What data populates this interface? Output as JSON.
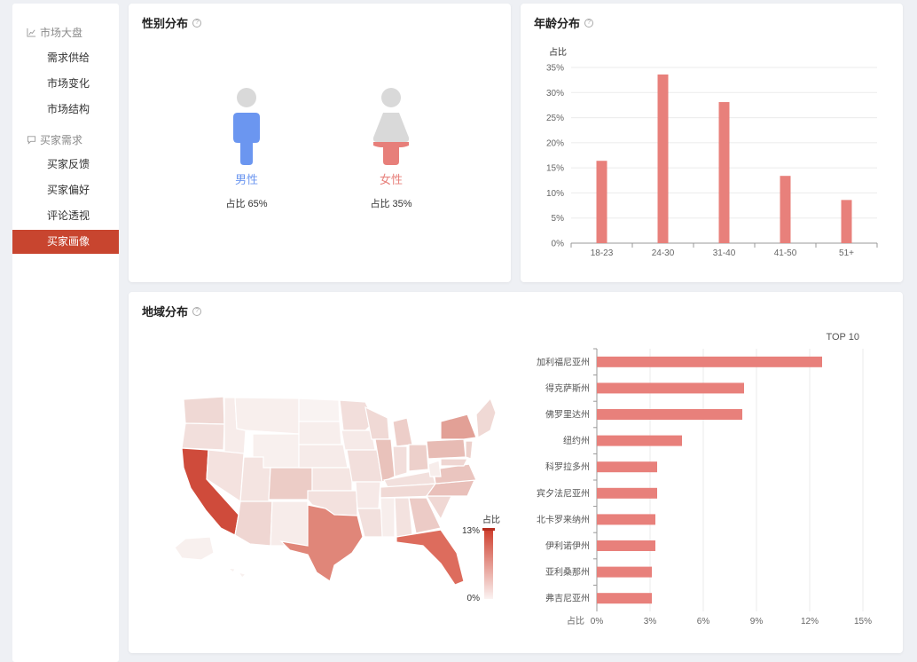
{
  "sidebar": {
    "groups": [
      {
        "label": "市场大盘",
        "icon": "chart-icon",
        "items": [
          {
            "label": "需求供给",
            "active": false
          },
          {
            "label": "市场变化",
            "active": false
          },
          {
            "label": "市场结构",
            "active": false
          }
        ]
      },
      {
        "label": "买家需求",
        "icon": "chat-icon",
        "items": [
          {
            "label": "买家反馈",
            "active": false
          },
          {
            "label": "买家偏好",
            "active": false
          },
          {
            "label": "评论透视",
            "active": false
          },
          {
            "label": "买家画像",
            "active": true
          }
        ]
      }
    ]
  },
  "gender": {
    "title": "性别分布",
    "male": {
      "label": "男性",
      "ratio_text": "占比 65%",
      "color": "#6b96f0"
    },
    "female": {
      "label": "女性",
      "ratio_text": "占比 35%",
      "color": "#e77f7a"
    }
  },
  "age": {
    "title": "年龄分布"
  },
  "region": {
    "title": "地域分布",
    "legend": {
      "title": "占比",
      "max": "13%",
      "min": "0%"
    },
    "top_title": "TOP 10"
  },
  "chart_data": [
    {
      "type": "bar",
      "categories": [
        "18-23",
        "24-30",
        "31-40",
        "41-50",
        "51+"
      ],
      "values": [
        16.4,
        33.6,
        28.1,
        13.4,
        8.6
      ],
      "ylabel": "占比",
      "ylim": [
        0,
        35
      ],
      "yticks": [
        "0%",
        "5%",
        "10%",
        "15%",
        "20%",
        "25%",
        "30%",
        "35%"
      ],
      "color": "#e8807b"
    },
    {
      "type": "bar",
      "orientation": "horizontal",
      "categories": [
        "加利福尼亚州",
        "得克萨斯州",
        "佛罗里达州",
        "纽约州",
        "科罗拉多州",
        "宾夕法尼亚州",
        "北卡罗来纳州",
        "伊利诺伊州",
        "亚利桑那州",
        "弗吉尼亚州"
      ],
      "values": [
        12.7,
        8.3,
        8.2,
        4.8,
        3.4,
        3.4,
        3.3,
        3.3,
        3.1,
        3.1
      ],
      "xlabel": "占比",
      "xlim": [
        0,
        15
      ],
      "xticks": [
        "0%",
        "3%",
        "6%",
        "9%",
        "12%",
        "15%"
      ],
      "color": "#e8807b"
    }
  ]
}
